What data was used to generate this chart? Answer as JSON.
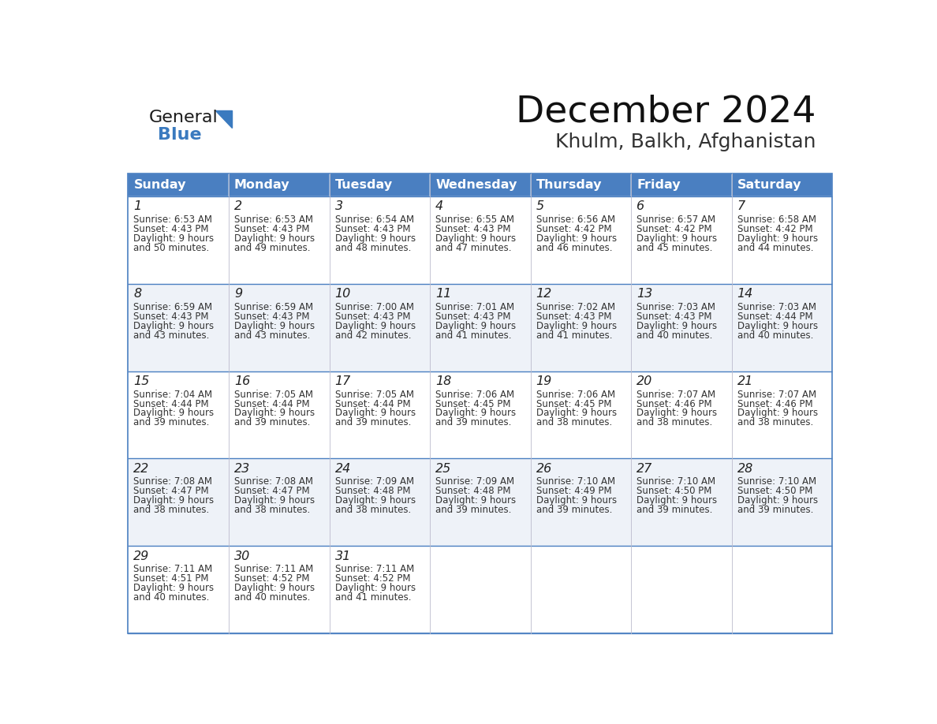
{
  "title": "December 2024",
  "subtitle": "Khulm, Balkh, Afghanistan",
  "days_of_week": [
    "Sunday",
    "Monday",
    "Tuesday",
    "Wednesday",
    "Thursday",
    "Friday",
    "Saturday"
  ],
  "header_bg": "#4a7fc1",
  "header_text": "#FFFFFF",
  "cell_bg_odd": "#FFFFFF",
  "cell_bg_even": "#eef2f8",
  "day_num_color": "#222222",
  "info_color": "#333333",
  "border_color": "#4a7fc1",
  "line_color": "#4a7fc1",
  "logo_color_general": "#1a1a1a",
  "logo_color_blue": "#3a7abf",
  "weeks": [
    [
      {
        "day": "1",
        "sunrise": "6:53 AM",
        "sunset": "4:43 PM",
        "daylight": "9 hours",
        "daylight2": "and 50 minutes."
      },
      {
        "day": "2",
        "sunrise": "6:53 AM",
        "sunset": "4:43 PM",
        "daylight": "9 hours",
        "daylight2": "and 49 minutes."
      },
      {
        "day": "3",
        "sunrise": "6:54 AM",
        "sunset": "4:43 PM",
        "daylight": "9 hours",
        "daylight2": "and 48 minutes."
      },
      {
        "day": "4",
        "sunrise": "6:55 AM",
        "sunset": "4:43 PM",
        "daylight": "9 hours",
        "daylight2": "and 47 minutes."
      },
      {
        "day": "5",
        "sunrise": "6:56 AM",
        "sunset": "4:42 PM",
        "daylight": "9 hours",
        "daylight2": "and 46 minutes."
      },
      {
        "day": "6",
        "sunrise": "6:57 AM",
        "sunset": "4:42 PM",
        "daylight": "9 hours",
        "daylight2": "and 45 minutes."
      },
      {
        "day": "7",
        "sunrise": "6:58 AM",
        "sunset": "4:42 PM",
        "daylight": "9 hours",
        "daylight2": "and 44 minutes."
      }
    ],
    [
      {
        "day": "8",
        "sunrise": "6:59 AM",
        "sunset": "4:43 PM",
        "daylight": "9 hours",
        "daylight2": "and 43 minutes."
      },
      {
        "day": "9",
        "sunrise": "6:59 AM",
        "sunset": "4:43 PM",
        "daylight": "9 hours",
        "daylight2": "and 43 minutes."
      },
      {
        "day": "10",
        "sunrise": "7:00 AM",
        "sunset": "4:43 PM",
        "daylight": "9 hours",
        "daylight2": "and 42 minutes."
      },
      {
        "day": "11",
        "sunrise": "7:01 AM",
        "sunset": "4:43 PM",
        "daylight": "9 hours",
        "daylight2": "and 41 minutes."
      },
      {
        "day": "12",
        "sunrise": "7:02 AM",
        "sunset": "4:43 PM",
        "daylight": "9 hours",
        "daylight2": "and 41 minutes."
      },
      {
        "day": "13",
        "sunrise": "7:03 AM",
        "sunset": "4:43 PM",
        "daylight": "9 hours",
        "daylight2": "and 40 minutes."
      },
      {
        "day": "14",
        "sunrise": "7:03 AM",
        "sunset": "4:44 PM",
        "daylight": "9 hours",
        "daylight2": "and 40 minutes."
      }
    ],
    [
      {
        "day": "15",
        "sunrise": "7:04 AM",
        "sunset": "4:44 PM",
        "daylight": "9 hours",
        "daylight2": "and 39 minutes."
      },
      {
        "day": "16",
        "sunrise": "7:05 AM",
        "sunset": "4:44 PM",
        "daylight": "9 hours",
        "daylight2": "and 39 minutes."
      },
      {
        "day": "17",
        "sunrise": "7:05 AM",
        "sunset": "4:44 PM",
        "daylight": "9 hours",
        "daylight2": "and 39 minutes."
      },
      {
        "day": "18",
        "sunrise": "7:06 AM",
        "sunset": "4:45 PM",
        "daylight": "9 hours",
        "daylight2": "and 39 minutes."
      },
      {
        "day": "19",
        "sunrise": "7:06 AM",
        "sunset": "4:45 PM",
        "daylight": "9 hours",
        "daylight2": "and 38 minutes."
      },
      {
        "day": "20",
        "sunrise": "7:07 AM",
        "sunset": "4:46 PM",
        "daylight": "9 hours",
        "daylight2": "and 38 minutes."
      },
      {
        "day": "21",
        "sunrise": "7:07 AM",
        "sunset": "4:46 PM",
        "daylight": "9 hours",
        "daylight2": "and 38 minutes."
      }
    ],
    [
      {
        "day": "22",
        "sunrise": "7:08 AM",
        "sunset": "4:47 PM",
        "daylight": "9 hours",
        "daylight2": "and 38 minutes."
      },
      {
        "day": "23",
        "sunrise": "7:08 AM",
        "sunset": "4:47 PM",
        "daylight": "9 hours",
        "daylight2": "and 38 minutes."
      },
      {
        "day": "24",
        "sunrise": "7:09 AM",
        "sunset": "4:48 PM",
        "daylight": "9 hours",
        "daylight2": "and 38 minutes."
      },
      {
        "day": "25",
        "sunrise": "7:09 AM",
        "sunset": "4:48 PM",
        "daylight": "9 hours",
        "daylight2": "and 39 minutes."
      },
      {
        "day": "26",
        "sunrise": "7:10 AM",
        "sunset": "4:49 PM",
        "daylight": "9 hours",
        "daylight2": "and 39 minutes."
      },
      {
        "day": "27",
        "sunrise": "7:10 AM",
        "sunset": "4:50 PM",
        "daylight": "9 hours",
        "daylight2": "and 39 minutes."
      },
      {
        "day": "28",
        "sunrise": "7:10 AM",
        "sunset": "4:50 PM",
        "daylight": "9 hours",
        "daylight2": "and 39 minutes."
      }
    ],
    [
      {
        "day": "29",
        "sunrise": "7:11 AM",
        "sunset": "4:51 PM",
        "daylight": "9 hours",
        "daylight2": "and 40 minutes."
      },
      {
        "day": "30",
        "sunrise": "7:11 AM",
        "sunset": "4:52 PM",
        "daylight": "9 hours",
        "daylight2": "and 40 minutes."
      },
      {
        "day": "31",
        "sunrise": "7:11 AM",
        "sunset": "4:52 PM",
        "daylight": "9 hours",
        "daylight2": "and 41 minutes."
      },
      null,
      null,
      null,
      null
    ]
  ]
}
